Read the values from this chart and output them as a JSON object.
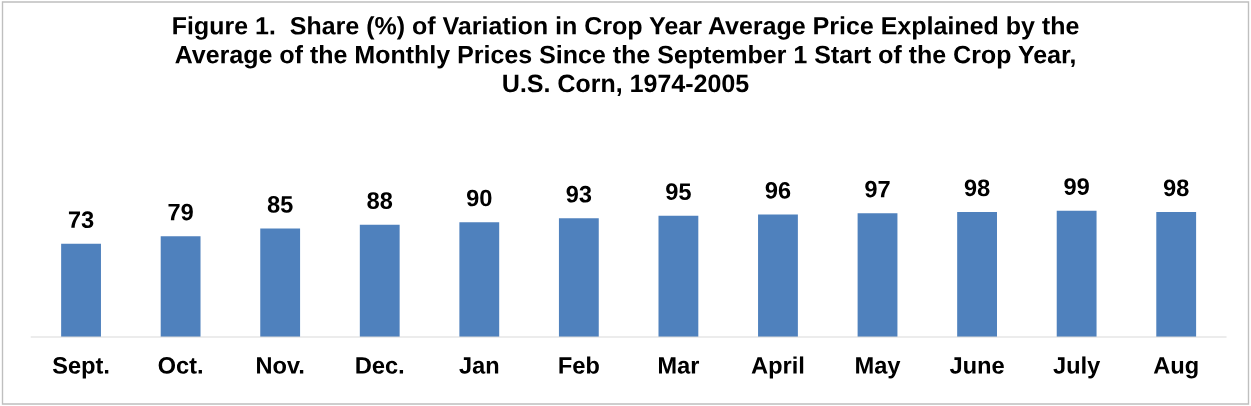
{
  "chart_data": {
    "type": "bar",
    "title": "Figure 1.  Share (%) of Variation in Crop Year Average Price Explained by the\nAverage of the Monthly Prices Since the September 1 Start of the Crop Year,\nU.S. Corn, 1974-2005",
    "categories": [
      "Sept.",
      "Oct.",
      "Nov.",
      "Dec.",
      "Jan",
      "Feb",
      "Mar",
      "April",
      "May",
      "June",
      "July",
      "Aug"
    ],
    "values": [
      73,
      79,
      85,
      88,
      90,
      93,
      95,
      96,
      97,
      98,
      99,
      98
    ],
    "color": "#4f81bd",
    "data_labels": true,
    "grid": false,
    "legend": false,
    "tick_labels": "x"
  }
}
